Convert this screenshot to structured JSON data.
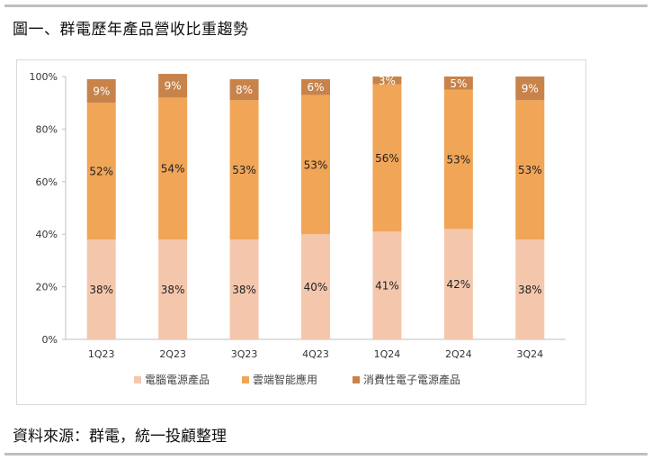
{
  "figure_title": "圖一、群電歷年產品營收比重趨勢",
  "source_note": "資料來源：群電，統一投顧整理",
  "chart_data": {
    "type": "bar",
    "stacked": true,
    "title": "",
    "xlabel": "",
    "ylabel": "",
    "ylim": [
      0,
      100
    ],
    "y_ticks": [
      0,
      20,
      40,
      60,
      80,
      100
    ],
    "y_tick_labels": [
      "0%",
      "20%",
      "40%",
      "60%",
      "80%",
      "100%"
    ],
    "categories": [
      "1Q23",
      "2Q23",
      "3Q23",
      "4Q23",
      "1Q24",
      "2Q24",
      "3Q24"
    ],
    "series": [
      {
        "name": "電腦電源產品",
        "color": "#f4c7ad",
        "values": [
          38,
          38,
          38,
          40,
          41,
          42,
          38
        ],
        "labels": [
          "38%",
          "38%",
          "38%",
          "40%",
          "41%",
          "42%",
          "38%"
        ]
      },
      {
        "name": "雲端智能應用",
        "color": "#f0a557",
        "values": [
          52,
          54,
          53,
          53,
          56,
          53,
          53
        ],
        "labels": [
          "52%",
          "54%",
          "53%",
          "53%",
          "56%",
          "53%",
          "53%"
        ]
      },
      {
        "name": "消費性電子電源產品",
        "color": "#c8834a",
        "values": [
          9,
          9,
          8,
          6,
          3,
          5,
          9
        ],
        "labels": [
          "9%",
          "9%",
          "8%",
          "6%",
          "3%",
          "5%",
          "9%"
        ]
      }
    ],
    "label_colors": [
      "#222222",
      "#222222",
      "#ffffff"
    ],
    "grid": false,
    "legend_position": "bottom"
  }
}
